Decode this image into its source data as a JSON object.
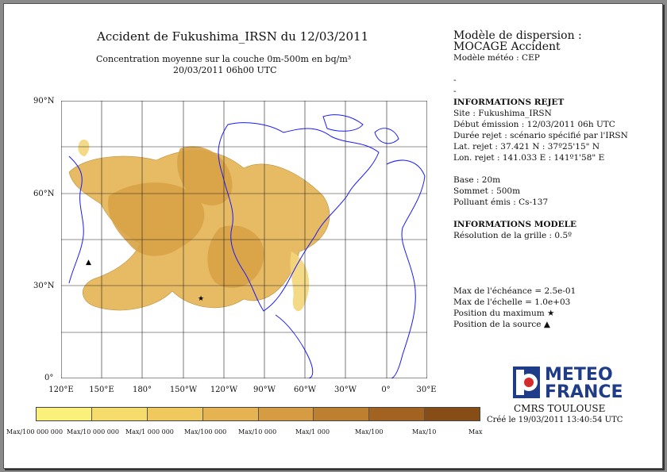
{
  "title": "Accident de Fukushima_IRSN du 12/03/2011",
  "subtitle_line1": "Concentration moyenne sur la couche 0m-500m en bq/m³",
  "subtitle_line2": "20/03/2011 06h00 UTC",
  "side": {
    "model_title_l1": "Modèle de dispersion :",
    "model_title_l2": "MOCAGE Accident",
    "meteo_model": "Modèle météo : CEP",
    "dash1": "-",
    "dash2": "-",
    "release_header": "INFORMATIONS REJET",
    "site": "Site : Fukushima_IRSN",
    "start": "Début émission : 12/03/2011 06h UTC",
    "duration": "Durée rejet : scénario spécifié par l'IRSN",
    "lat": "Lat. rejet : 37.421 N : 37º25'15\" N",
    "lon": "Lon. rejet : 141.033 E : 141º1'58\" E",
    "base": "Base : 20m",
    "top": "Sommet : 500m",
    "pollutant": "Polluant émis : Cs-137",
    "model_header": "INFORMATIONS MODELE",
    "resolution": "Résolution de la grille : 0.5º",
    "max_echeance": "Max de l'échéance = 2.5e-01",
    "max_echelle": "Max de l'échelle = 1.0e+03",
    "max_position": "Position du maximum ★",
    "source_position": "Position de la source  ▲"
  },
  "map": {
    "lat_labels": [
      "90°N",
      "60°N",
      "30°N",
      "0°"
    ],
    "lon_labels": [
      "120°E",
      "150°E",
      "180°",
      "150°W",
      "120°W",
      "90°W",
      "60°W",
      "30°W",
      "0°",
      "30°E"
    ],
    "land_color": "#1a1aff",
    "grid_color": "#222222"
  },
  "legend": {
    "colors": [
      "#fbf07a",
      "#f6dc6a",
      "#efc95e",
      "#e5b352",
      "#d59c44",
      "#bd7f30",
      "#a26320",
      "#874d16",
      "#6c3a10"
    ],
    "labels": [
      "Max/100 000 000",
      "Max/10 000 000",
      "Max/1 000 000",
      "Max/100 000",
      "Max/10 000",
      "Max/1 000",
      "Max/100",
      "Max/10",
      "Max"
    ]
  },
  "footer": {
    "logo_line1": "METEO",
    "logo_line2": "FRANCE",
    "center": "CMRS TOULOUSE",
    "created": "Créé le 19/03/2011 13:40:54 UTC"
  }
}
